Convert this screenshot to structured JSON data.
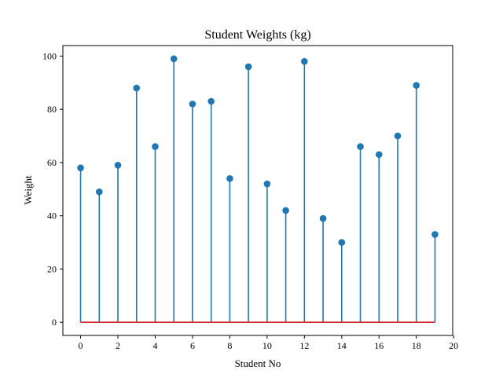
{
  "chart_data": {
    "type": "stem",
    "title": "Student Weights (kg)",
    "xlabel": "Student No",
    "ylabel": "Weight",
    "x": [
      0,
      1,
      2,
      3,
      4,
      5,
      6,
      7,
      8,
      9,
      10,
      11,
      12,
      13,
      14,
      15,
      16,
      17,
      18,
      19
    ],
    "values": [
      58,
      49,
      59,
      88,
      66,
      99,
      82,
      83,
      54,
      96,
      52,
      42,
      98,
      39,
      30,
      66,
      63,
      70,
      89,
      33
    ],
    "xlim": [
      -0.95,
      19.95
    ],
    "ylim": [
      -4.95,
      103.95
    ],
    "xticks": [
      0,
      2,
      4,
      6,
      8,
      10,
      12,
      14,
      16,
      18,
      20
    ],
    "yticks": [
      0,
      20,
      40,
      60,
      80,
      100
    ],
    "grid": false,
    "legend": "none",
    "colors": {
      "stem": "#1f77b4",
      "marker": "#1f77b4",
      "baseline": "#d62728",
      "axes": "#000000"
    }
  }
}
